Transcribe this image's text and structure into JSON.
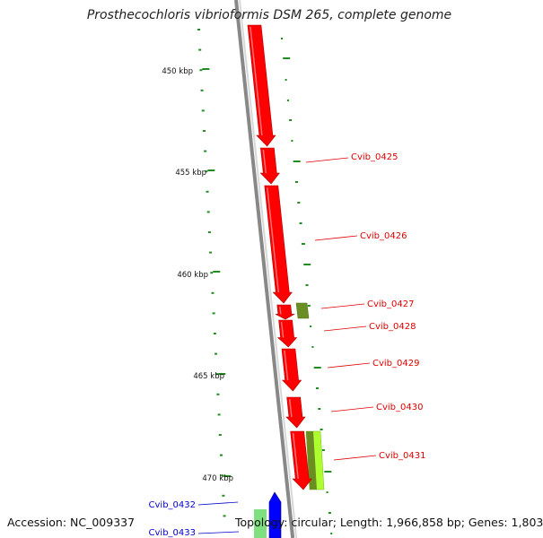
{
  "title": "Prosthecochloris vibrioformis DSM 265, complete genome",
  "footer": {
    "accession": "Accession: NC_009337",
    "stats": "Topology: circular; Length: 1,966,858 bp; Genes: 1,803"
  },
  "scale_labels": [
    "450 kbp",
    "455 kbp",
    "460 kbp",
    "465 kbp",
    "470 kbp"
  ],
  "genes": [
    {
      "label": "Cvib_0425",
      "strand": "forward",
      "color": "#dd0000"
    },
    {
      "label": "Cvib_0426",
      "strand": "forward",
      "color": "#dd0000"
    },
    {
      "label": "Cvib_0427",
      "strand": "forward",
      "color": "#dd0000"
    },
    {
      "label": "Cvib_0428",
      "strand": "forward",
      "color": "#dd0000"
    },
    {
      "label": "Cvib_0429",
      "strand": "forward",
      "color": "#dd0000"
    },
    {
      "label": "Cvib_0430",
      "strand": "forward",
      "color": "#dd0000"
    },
    {
      "label": "Cvib_0431",
      "strand": "forward",
      "color": "#dd0000"
    },
    {
      "label": "Cvib_0432",
      "strand": "reverse",
      "color": "#0000cc"
    },
    {
      "label": "Cvib_0433",
      "strand": "reverse",
      "color": "#0000cc"
    }
  ],
  "colors": {
    "forward_gene": "#ff0000",
    "reverse_gene": "#0000ff",
    "backbone": "#888888",
    "tick": "#228b22",
    "feature_olive": "#6b8e23",
    "feature_lime": "#adff2f",
    "feature_green": "#7ee07e"
  }
}
